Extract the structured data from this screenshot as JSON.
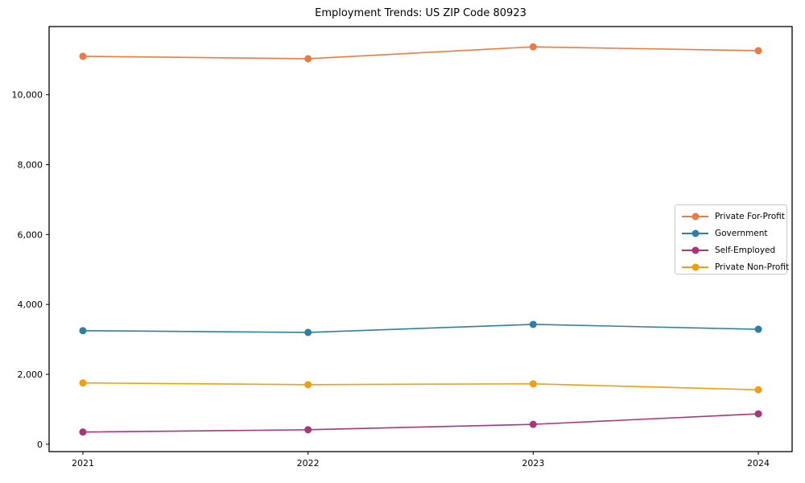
{
  "chart_data": {
    "type": "line",
    "title": "Employment Trends: US ZIP Code 80923",
    "xlabel": "",
    "ylabel": "",
    "x": [
      2021,
      2022,
      2023,
      2024
    ],
    "x_tick_labels": [
      "2021",
      "2022",
      "2023",
      "2024"
    ],
    "y_ticks": [
      0,
      2000,
      4000,
      6000,
      8000,
      10000
    ],
    "y_tick_labels": [
      "0",
      "2,000",
      "4,000",
      "6,000",
      "8,000",
      "10,000"
    ],
    "xlim": [
      2020.85,
      2024.15
    ],
    "ylim": [
      -210,
      11950
    ],
    "grid": false,
    "legend_position": "center right",
    "series": [
      {
        "name": "Private For-Profit",
        "color": "#E87C46",
        "values": [
          11100,
          11030,
          11370,
          11260
        ]
      },
      {
        "name": "Government",
        "color": "#2F80A0",
        "values": [
          3250,
          3200,
          3430,
          3290
        ]
      },
      {
        "name": "Self-Employed",
        "color": "#A53878",
        "values": [
          350,
          415,
          570,
          870
        ]
      },
      {
        "name": "Private Non-Profit",
        "color": "#F19E10",
        "values": [
          1755,
          1705,
          1730,
          1560
        ]
      }
    ]
  }
}
